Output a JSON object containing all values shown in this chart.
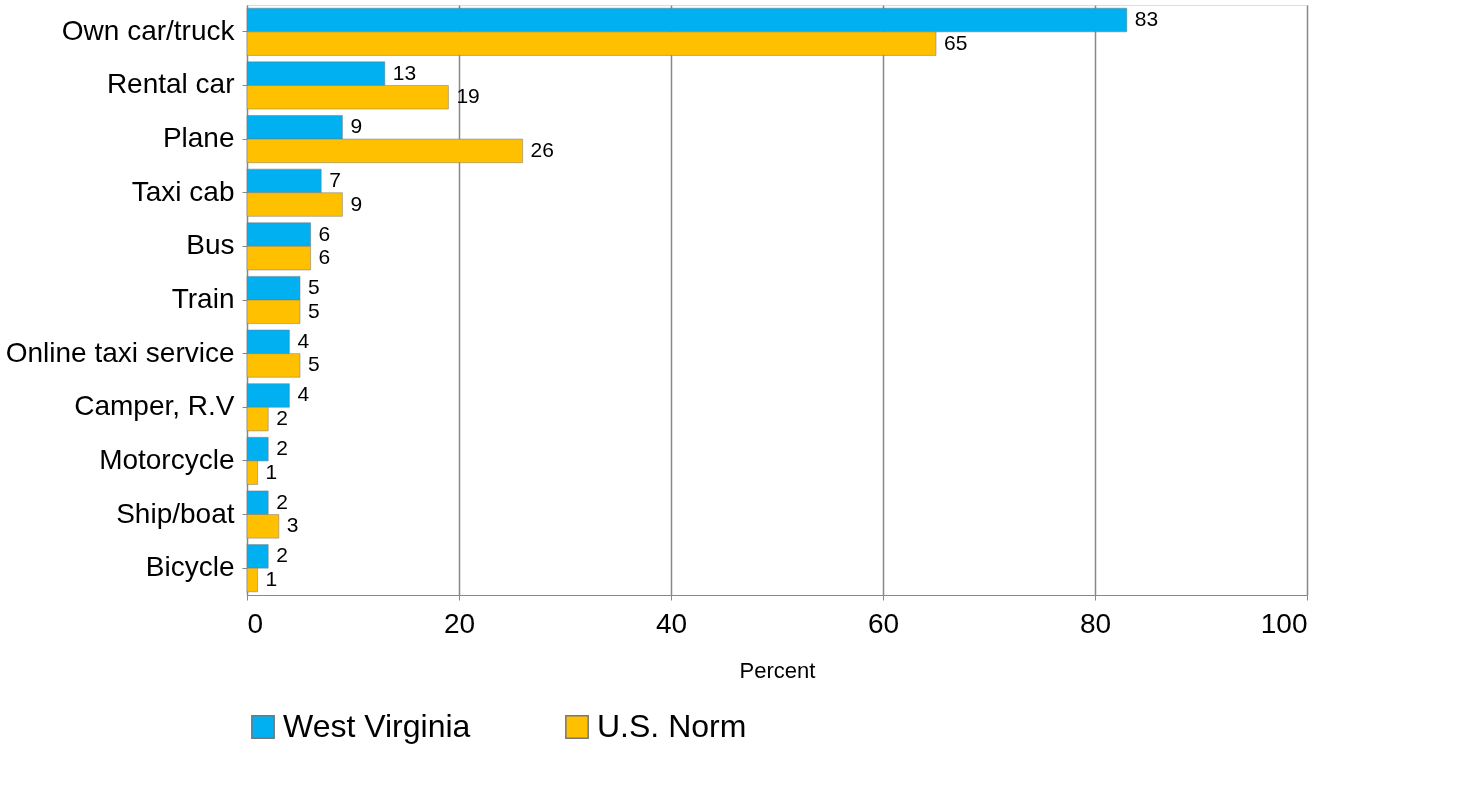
{
  "chart_data": {
    "type": "bar",
    "orientation": "horizontal",
    "xlabel": "Percent",
    "categories": [
      "Own car/truck",
      "Rental car",
      "Plane",
      "Taxi cab",
      "Bus",
      "Train",
      "Online taxi service",
      "Camper, R.V",
      "Motorcycle",
      "Ship/boat",
      "Bicycle"
    ],
    "series": [
      {
        "name": "West Virginia",
        "color": "#00b0f0",
        "values": [
          83,
          13,
          9,
          7,
          6,
          5,
          4,
          4,
          2,
          2,
          2
        ]
      },
      {
        "name": "U.S. Norm",
        "color": "#ffc000",
        "values": [
          65,
          19,
          26,
          9,
          6,
          5,
          5,
          2,
          1,
          3,
          1
        ]
      }
    ],
    "xlim": [
      0,
      100
    ],
    "xticks": [
      0,
      20,
      40,
      60,
      80,
      100
    ],
    "grid": "x",
    "legend": "bottom",
    "data_labels": true
  }
}
